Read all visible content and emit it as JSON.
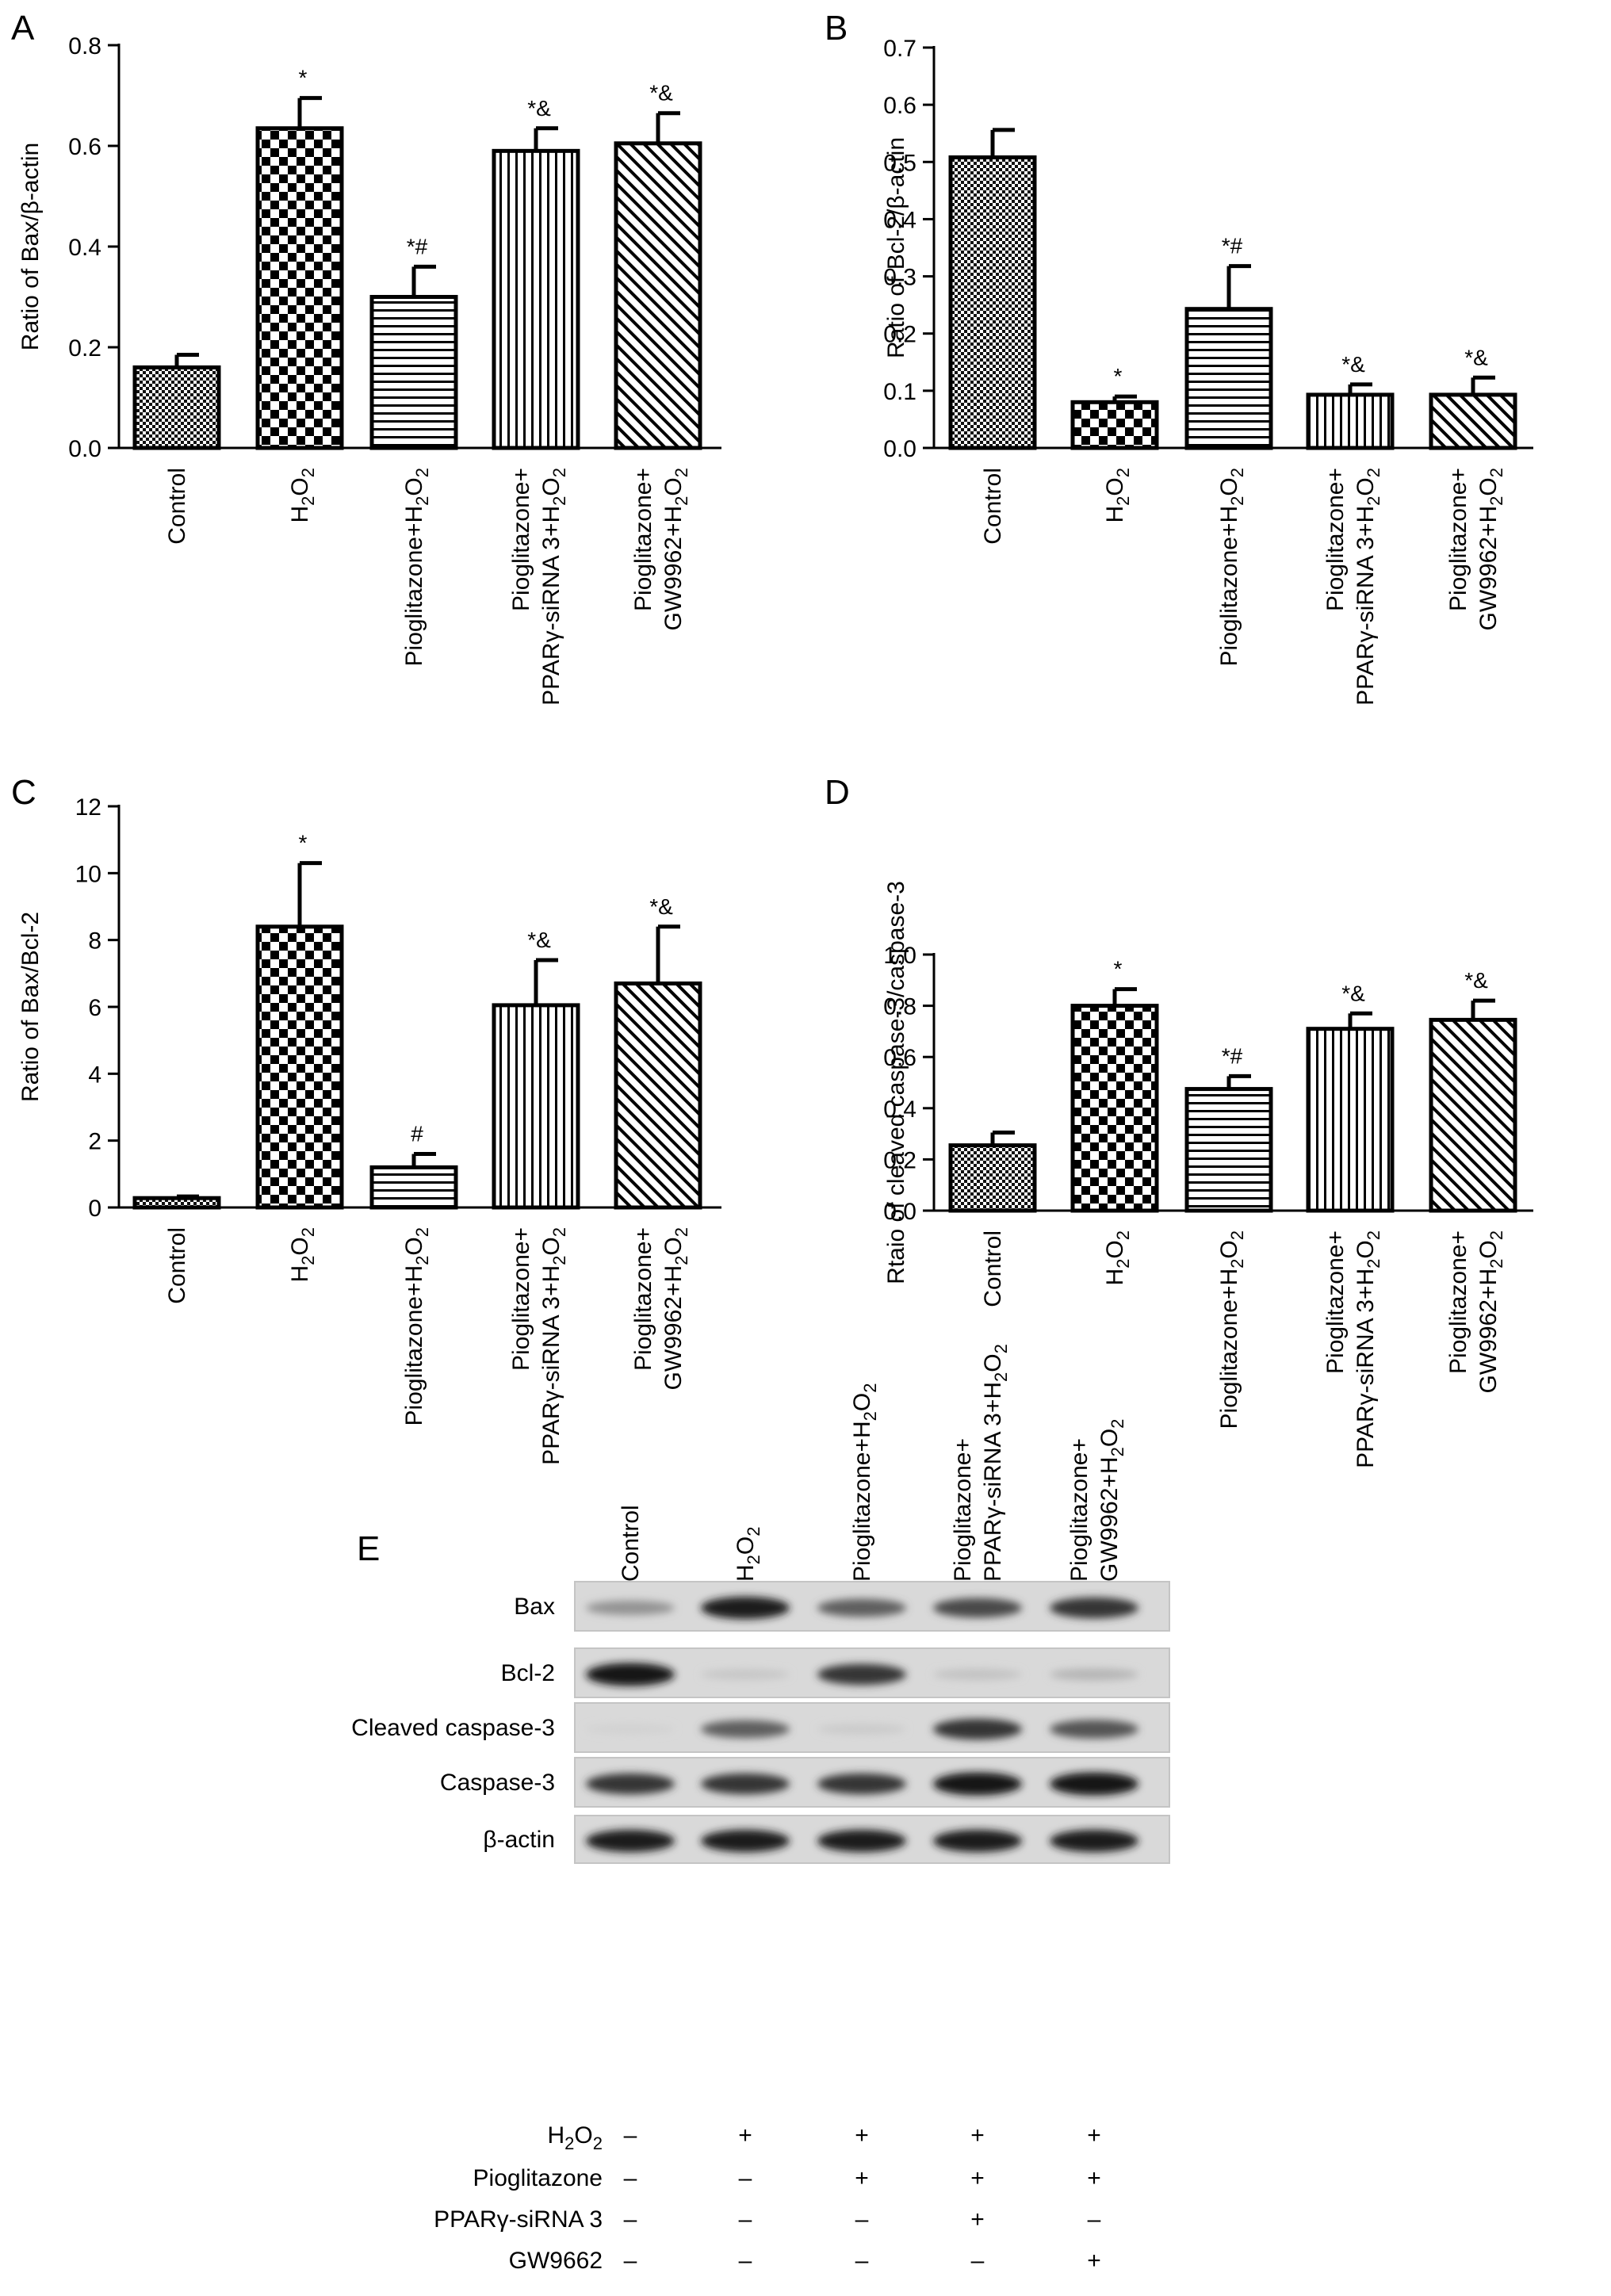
{
  "chart_data": [
    {
      "type": "bar",
      "panel": "A",
      "ylabel": "Ratio of Bax/β-actin",
      "ylim": [
        0,
        0.8
      ],
      "yticks": [
        "0.0",
        "0.2",
        "0.4",
        "0.6",
        "0.8"
      ],
      "tick_values": [
        0,
        0.2,
        0.4,
        0.6,
        0.8
      ],
      "categories": [
        "Control",
        "H2O2",
        "Pioglitazone+H2O2",
        "Pioglitazone+ PPARγ-siRNA 3+H2O2",
        "Pioglitazone+ GW9962+H2O2"
      ],
      "values": [
        0.16,
        0.635,
        0.3,
        0.59,
        0.605
      ],
      "errors": [
        0.025,
        0.06,
        0.06,
        0.045,
        0.06
      ],
      "annotations": [
        "",
        "*",
        "*#",
        "*&",
        "*&"
      ]
    },
    {
      "type": "bar",
      "panel": "B",
      "ylabel": "Ratio of Bcl-2/β-actin",
      "ylim": [
        0,
        0.7
      ],
      "yticks": [
        "0.0",
        "0.1",
        "0.2",
        "0.3",
        "0.4",
        "0.5",
        "0.6",
        "0.7"
      ],
      "tick_values": [
        0,
        0.1,
        0.2,
        0.3,
        0.4,
        0.5,
        0.6,
        0.7
      ],
      "categories": [
        "Control",
        "H2O2",
        "Pioglitazone+H2O2",
        "Pioglitazone+ PPARγ-siRNA 3+H2O2",
        "Pioglitazone+ GW9962+H2O2"
      ],
      "values": [
        0.508,
        0.08,
        0.243,
        0.093,
        0.093
      ],
      "errors": [
        0.048,
        0.01,
        0.075,
        0.018,
        0.03
      ],
      "annotations": [
        "",
        "*",
        "*#",
        "*&",
        "*&"
      ]
    },
    {
      "type": "bar",
      "panel": "C",
      "ylabel": "Ratio of Bax/Bcl-2",
      "ylim": [
        0,
        12
      ],
      "yticks": [
        "0",
        "2",
        "4",
        "6",
        "8",
        "10",
        "12"
      ],
      "tick_values": [
        0,
        2,
        4,
        6,
        8,
        10,
        12
      ],
      "categories": [
        "Control",
        "H2O2",
        "Pioglitazone+H2O2",
        "Pioglitazone+ PPARγ-siRNA 3+H2O2",
        "Pioglitazone+ GW9962+H2O2"
      ],
      "values": [
        0.28,
        8.4,
        1.2,
        6.05,
        6.7
      ],
      "errors": [
        0.05,
        1.9,
        0.4,
        1.35,
        1.7
      ],
      "annotations": [
        "",
        "*",
        "#",
        "*&",
        "*&"
      ]
    },
    {
      "type": "bar",
      "panel": "D",
      "ylabel": "Rtaio of cleaved caspase-3/caspase-3",
      "ylim": [
        0,
        1.0
      ],
      "yticks": [
        "0.0",
        "0.2",
        "0.4",
        "0.6",
        "0.8",
        "1.0"
      ],
      "tick_values": [
        0,
        0.2,
        0.4,
        0.6,
        0.8,
        1.0
      ],
      "categories": [
        "Control",
        "H2O2",
        "Pioglitazone+H2O2",
        "Pioglitazone+ PPARγ-siRNA 3+H2O2",
        "Pioglitazone+ GW9962+H2O2"
      ],
      "values": [
        0.255,
        0.8,
        0.475,
        0.71,
        0.745
      ],
      "errors": [
        0.05,
        0.065,
        0.05,
        0.06,
        0.075
      ],
      "annotations": [
        "",
        "*",
        "*#",
        "*&",
        "*&"
      ]
    }
  ],
  "blot": {
    "panel": "E",
    "lanes": [
      "Control",
      "H2O2",
      "Pioglitazone+H2O2",
      "Pioglitazone+ PPARγ-siRNA 3+H2O2",
      "Pioglitazone+ GW9962+H2O2"
    ],
    "rows": [
      "Bax",
      "Bcl-2",
      "Cleaved caspase-3",
      "Caspase-3",
      "β-actin"
    ],
    "band_intensity": [
      [
        0.35,
        0.9,
        0.6,
        0.7,
        0.8
      ],
      [
        0.95,
        0.1,
        0.8,
        0.12,
        0.18
      ],
      [
        0.05,
        0.6,
        0.08,
        0.8,
        0.65
      ],
      [
        0.8,
        0.8,
        0.8,
        0.95,
        0.95
      ],
      [
        0.9,
        0.9,
        0.9,
        0.9,
        0.9
      ]
    ],
    "treatments": [
      {
        "name": "H2O2",
        "signs": [
          "–",
          "+",
          "+",
          "+",
          "+"
        ]
      },
      {
        "name": "Pioglitazone",
        "signs": [
          "–",
          "–",
          "+",
          "+",
          "+"
        ]
      },
      {
        "name": "PPARγ-siRNA 3",
        "signs": [
          "–",
          "–",
          "–",
          "+",
          "–"
        ]
      },
      {
        "name": "GW9662",
        "signs": [
          "–",
          "–",
          "–",
          "–",
          "+"
        ]
      }
    ]
  }
}
